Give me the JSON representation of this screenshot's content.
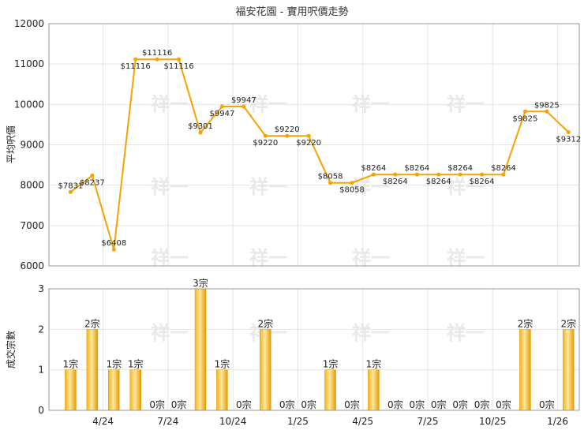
{
  "chart_data": [
    {
      "type": "line",
      "title": "福安花園 - 實用呎價走勢",
      "ylabel": "平均呎價",
      "ylim": [
        6000,
        12000
      ],
      "yticks": [
        6000,
        7000,
        8000,
        9000,
        10000,
        11000,
        12000
      ],
      "x_tick_labels": [
        "4/24",
        "7/24",
        "10/24",
        "1/25",
        "4/25",
        "7/25",
        "10/25",
        "1/26"
      ],
      "grid": true,
      "series": [
        {
          "color": "#f5a300",
          "values": [
            7831,
            8237,
            6408,
            11116,
            11116,
            11116,
            9301,
            9947,
            9947,
            9220,
            9220,
            9220,
            8058,
            8058,
            8264,
            8264,
            8264,
            8264,
            8264,
            8264,
            8264,
            9825,
            9825,
            9312
          ],
          "labels": [
            "$7831",
            "$8237",
            "$6408",
            "$11116",
            "$11116",
            "$11116",
            "$9301",
            "$9947",
            "$9947",
            "$9220",
            "$9220",
            "$9220",
            "$8058",
            "$8058",
            "$8264",
            "$8264",
            "$8264",
            "$8264",
            "$8264",
            "$8264",
            "$8264",
            "$9825",
            "$9825",
            "$9312"
          ]
        }
      ]
    },
    {
      "type": "bar",
      "ylabel": "成交宗數",
      "ylim": [
        0,
        3
      ],
      "yticks": [
        0,
        1,
        2,
        3
      ],
      "x_tick_labels": [
        "4/24",
        "7/24",
        "10/24",
        "1/25",
        "4/25",
        "7/25",
        "10/25",
        "1/26"
      ],
      "grid": true,
      "series": [
        {
          "color": "#f5a300",
          "values": [
            1,
            2,
            1,
            1,
            0,
            0,
            3,
            1,
            0,
            2,
            0,
            0,
            1,
            0,
            1,
            0,
            0,
            0,
            0,
            0,
            0,
            2,
            0,
            2
          ],
          "labels": [
            "1宗",
            "2宗",
            "1宗",
            "1宗",
            "0宗",
            "0宗",
            "3宗",
            "1宗",
            "0宗",
            "2宗",
            "0宗",
            "0宗",
            "1宗",
            "0宗",
            "1宗",
            "0宗",
            "0宗",
            "0宗",
            "0宗",
            "0宗",
            "0宗",
            "2宗",
            "0宗",
            "2宗"
          ]
        }
      ]
    }
  ],
  "watermark": "祥一"
}
